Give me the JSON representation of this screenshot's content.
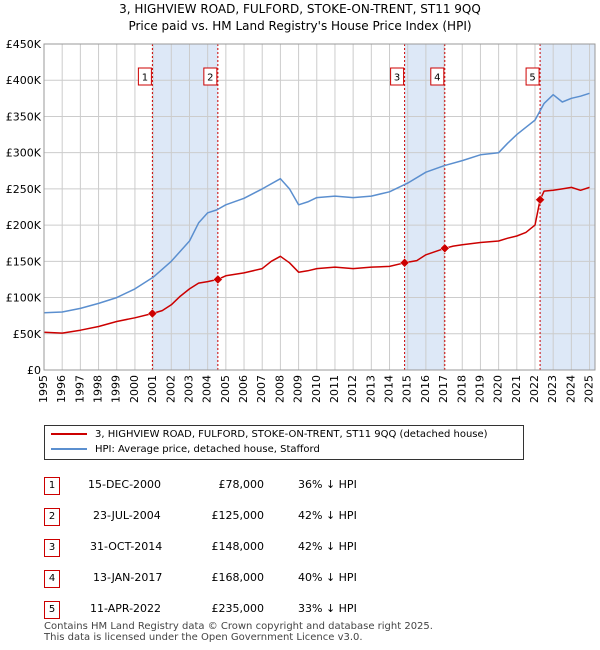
{
  "title_line1": "3, HIGHVIEW ROAD, FULFORD, STOKE-ON-TRENT, ST11 9QQ",
  "title_line2": "Price paid vs. HM Land Registry's House Price Index (HPI)",
  "colors": {
    "property": "#cc0000",
    "hpi": "#5b8fcf",
    "shade": "#dde8f7",
    "grid": "#cccccc"
  },
  "chart_data": {
    "type": "line",
    "ylim": [
      0,
      450000
    ],
    "xlim": [
      1995,
      2025.3
    ],
    "yticks": [
      0,
      50000,
      100000,
      150000,
      200000,
      250000,
      300000,
      350000,
      400000,
      450000
    ],
    "ytick_labels": [
      "£0",
      "£50K",
      "£100K",
      "£150K",
      "£200K",
      "£250K",
      "£300K",
      "£350K",
      "£400K",
      "£450K"
    ],
    "xticks": [
      1995,
      1996,
      1997,
      1998,
      1999,
      2000,
      2001,
      2002,
      2003,
      2004,
      2005,
      2006,
      2007,
      2008,
      2009,
      2010,
      2011,
      2012,
      2013,
      2014,
      2015,
      2016,
      2017,
      2018,
      2019,
      2020,
      2021,
      2022,
      2023,
      2024,
      2025
    ],
    "xtick_labels": [
      "1995",
      "1996",
      "1997",
      "1998",
      "1999",
      "2000",
      "2001",
      "2002",
      "2003",
      "2004",
      "2005",
      "2006",
      "2007",
      "2008",
      "2009",
      "2010",
      "2011",
      "2012",
      "2013",
      "2014",
      "2015",
      "2016",
      "2017",
      "2018",
      "2019",
      "2020",
      "2021",
      "2022",
      "2023",
      "2024",
      "2025"
    ],
    "shaded_ranges": [
      [
        2000.96,
        2004.56
      ],
      [
        2014.83,
        2017.04
      ],
      [
        2022.28,
        2025.3
      ]
    ],
    "series": [
      {
        "name": "3, HIGHVIEW ROAD, FULFORD, STOKE-ON-TRENT, ST11 9QQ (detached house)",
        "x": [
          1995.0,
          1996.0,
          1997.0,
          1998.0,
          1999.0,
          2000.0,
          2000.96,
          2001.5,
          2002.0,
          2002.5,
          2003.0,
          2003.5,
          2004.0,
          2004.56,
          2005.0,
          2006.0,
          2007.0,
          2007.5,
          2008.0,
          2008.5,
          2009.0,
          2009.5,
          2010.0,
          2011.0,
          2012.0,
          2013.0,
          2014.0,
          2014.83,
          2015.5,
          2016.0,
          2017.04,
          2017.5,
          2018.0,
          2019.0,
          2020.0,
          2020.5,
          2021.0,
          2021.5,
          2022.0,
          2022.28,
          2022.5,
          2023.0,
          2023.5,
          2024.0,
          2024.5,
          2025.0
        ],
        "values": [
          52000,
          51000,
          55000,
          60000,
          67000,
          72000,
          78000,
          82000,
          90000,
          102000,
          112000,
          120000,
          122000,
          125000,
          130000,
          134000,
          140000,
          150000,
          157000,
          148000,
          135000,
          137000,
          140000,
          142000,
          140000,
          142000,
          143000,
          148000,
          151000,
          159000,
          168000,
          171000,
          173000,
          176000,
          178000,
          182000,
          185000,
          190000,
          200000,
          235000,
          247000,
          248000,
          250000,
          252000,
          248000,
          252000
        ]
      },
      {
        "name": "HPI: Average price, detached house, Stafford",
        "x": [
          1995.0,
          1996.0,
          1997.0,
          1998.0,
          1999.0,
          2000.0,
          2001.0,
          2002.0,
          2003.0,
          2003.5,
          2004.0,
          2004.5,
          2005.0,
          2006.0,
          2007.0,
          2008.0,
          2008.5,
          2009.0,
          2009.5,
          2010.0,
          2011.0,
          2012.0,
          2013.0,
          2014.0,
          2015.0,
          2016.0,
          2017.0,
          2018.0,
          2019.0,
          2020.0,
          2020.5,
          2021.0,
          2021.5,
          2022.0,
          2022.5,
          2023.0,
          2023.5,
          2024.0,
          2024.5,
          2025.0
        ],
        "values": [
          79000,
          80000,
          85000,
          92000,
          100000,
          112000,
          128000,
          150000,
          178000,
          203000,
          217000,
          221000,
          228000,
          237000,
          250000,
          264000,
          250000,
          228000,
          232000,
          238000,
          240000,
          238000,
          240000,
          246000,
          258000,
          273000,
          282000,
          289000,
          297000,
          300000,
          313000,
          325000,
          335000,
          345000,
          368000,
          380000,
          370000,
          375000,
          378000,
          382000
        ]
      }
    ],
    "markers": [
      {
        "label": "1",
        "x": 2000.96,
        "y": 78000
      },
      {
        "label": "2",
        "x": 2004.56,
        "y": 125000
      },
      {
        "label": "3",
        "x": 2014.83,
        "y": 148000
      },
      {
        "label": "4",
        "x": 2017.04,
        "y": 168000
      },
      {
        "label": "5",
        "x": 2022.28,
        "y": 235000
      }
    ]
  },
  "legend": {
    "property_label": "3, HIGHVIEW ROAD, FULFORD, STOKE-ON-TRENT, ST11 9QQ (detached house)",
    "hpi_label": "HPI: Average price, detached house, Stafford"
  },
  "sales": [
    {
      "num": "1",
      "date": "15-DEC-2000",
      "price": "£78,000",
      "hpi": "36% ↓ HPI"
    },
    {
      "num": "2",
      "date": "23-JUL-2004",
      "price": "£125,000",
      "hpi": "42% ↓ HPI"
    },
    {
      "num": "3",
      "date": "31-OCT-2014",
      "price": "£148,000",
      "hpi": "42% ↓ HPI"
    },
    {
      "num": "4",
      "date": "13-JAN-2017",
      "price": "£168,000",
      "hpi": "40% ↓ HPI"
    },
    {
      "num": "5",
      "date": "11-APR-2022",
      "price": "£235,000",
      "hpi": "33% ↓ HPI"
    }
  ],
  "footer_line1": "Contains HM Land Registry data © Crown copyright and database right 2025.",
  "footer_line2": "This data is licensed under the Open Government Licence v3.0."
}
